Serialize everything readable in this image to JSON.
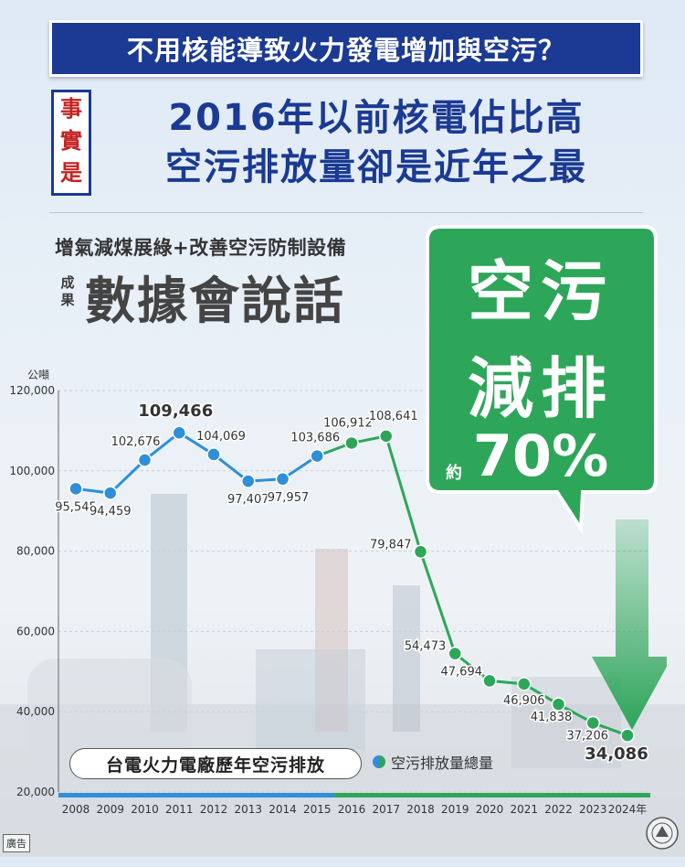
{
  "banner": {
    "title": "不用核能導致火力發電增加與空污？"
  },
  "fact": {
    "tag_chars": [
      "事",
      "實",
      "是"
    ]
  },
  "headline": {
    "line1": "2016年以前核電佔比高",
    "line2": "空污排放量卻是近年之最"
  },
  "slogan": {
    "subtitle": "增氣減煤展綠+改善空污防制設備",
    "small_chars": [
      "成",
      "果"
    ],
    "big": "數據會說話"
  },
  "callout": {
    "line1": "空污",
    "line2": "減排",
    "prefix": "約",
    "percent": "70%"
  },
  "colors": {
    "blue": "#2f8fd8",
    "green": "#2ea65a",
    "navy": "#1b3a93",
    "callout_fill": "#2ea65a"
  },
  "chart_title": "台電火力電廠歷年空污排放",
  "legend": {
    "label": "空污排放量總量"
  },
  "ad_label": "廣告",
  "chart_data": {
    "type": "line",
    "y_unit": "公噸",
    "x_suffix": "年",
    "ylim": [
      20000,
      120000
    ],
    "y_ticks": [
      20000,
      40000,
      60000,
      80000,
      100000,
      120000
    ],
    "y_tick_labels": [
      "20,000",
      "40,000",
      "60,000",
      "80,000",
      "100,000",
      "120,000"
    ],
    "categories": [
      "2008",
      "2009",
      "2010",
      "2011",
      "2012",
      "2013",
      "2014",
      "2015",
      "2016",
      "2017",
      "2018",
      "2019",
      "2020",
      "2021",
      "2022",
      "2023",
      "2024"
    ],
    "values": [
      95545,
      94459,
      102676,
      109466,
      104069,
      97407,
      97957,
      103686,
      106912,
      108641,
      79847,
      54473,
      47694,
      46906,
      41838,
      37206,
      34086
    ],
    "value_labels": [
      "95,545",
      "94,459",
      "102,676",
      "109,466",
      "104,069",
      "97,407",
      "97,957",
      "103,686",
      "106,912",
      "108,641",
      "79,847",
      "54,473",
      "47,694",
      "46,906",
      "41,838",
      "37,206",
      "34,086"
    ],
    "grid": true,
    "segments": [
      {
        "from": "2008",
        "to": "2015",
        "color": "#2f8fd8"
      },
      {
        "from": "2016",
        "to": "2024",
        "color": "#2ea65a"
      }
    ]
  }
}
